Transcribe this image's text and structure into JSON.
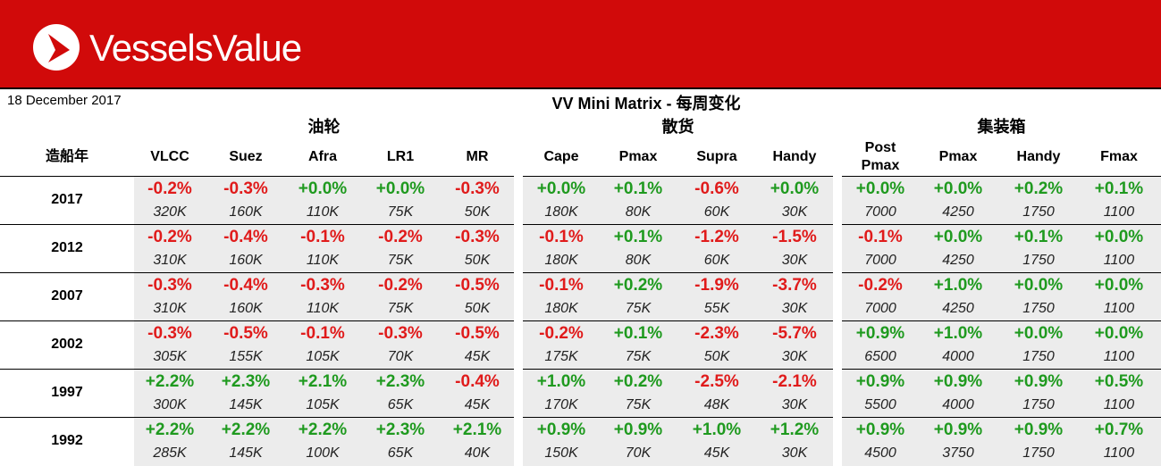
{
  "header": {
    "logo": "VesselsValue",
    "date": "18 December 2017",
    "title": "VV Mini Matrix - 每周变化"
  },
  "table": {
    "year_header": "造船年",
    "groups": [
      {
        "name": "油轮",
        "columns": [
          "VLCC",
          "Suez",
          "Afra",
          "LR1",
          "MR"
        ]
      },
      {
        "name": "散货",
        "columns": [
          "Cape",
          "Pmax",
          "Supra",
          "Handy"
        ]
      },
      {
        "name": "集装箱",
        "columns": [
          "Post Pmax",
          "Pmax",
          "Handy",
          "Fmax"
        ]
      }
    ],
    "rows": [
      {
        "year": "2017",
        "changes": [
          "-0.2%",
          "-0.3%",
          "+0.0%",
          "+0.0%",
          "-0.3%",
          "+0.0%",
          "+0.1%",
          "-0.6%",
          "+0.0%",
          "+0.0%",
          "+0.0%",
          "+0.2%",
          "+0.1%"
        ],
        "sizes": [
          "320K",
          "160K",
          "110K",
          "75K",
          "50K",
          "180K",
          "80K",
          "60K",
          "30K",
          "7000",
          "4250",
          "1750",
          "1100"
        ]
      },
      {
        "year": "2012",
        "changes": [
          "-0.2%",
          "-0.4%",
          "-0.1%",
          "-0.2%",
          "-0.3%",
          "-0.1%",
          "+0.1%",
          "-1.2%",
          "-1.5%",
          "-0.1%",
          "+0.0%",
          "+0.1%",
          "+0.0%"
        ],
        "sizes": [
          "310K",
          "160K",
          "110K",
          "75K",
          "50K",
          "180K",
          "80K",
          "60K",
          "30K",
          "7000",
          "4250",
          "1750",
          "1100"
        ]
      },
      {
        "year": "2007",
        "changes": [
          "-0.3%",
          "-0.4%",
          "-0.3%",
          "-0.2%",
          "-0.5%",
          "-0.1%",
          "+0.2%",
          "-1.9%",
          "-3.7%",
          "-0.2%",
          "+1.0%",
          "+0.0%",
          "+0.0%"
        ],
        "sizes": [
          "310K",
          "160K",
          "110K",
          "75K",
          "50K",
          "180K",
          "75K",
          "55K",
          "30K",
          "7000",
          "4250",
          "1750",
          "1100"
        ]
      },
      {
        "year": "2002",
        "changes": [
          "-0.3%",
          "-0.5%",
          "-0.1%",
          "-0.3%",
          "-0.5%",
          "-0.2%",
          "+0.1%",
          "-2.3%",
          "-5.7%",
          "+0.9%",
          "+1.0%",
          "+0.0%",
          "+0.0%"
        ],
        "sizes": [
          "305K",
          "155K",
          "105K",
          "70K",
          "45K",
          "175K",
          "75K",
          "50K",
          "30K",
          "6500",
          "4000",
          "1750",
          "1100"
        ]
      },
      {
        "year": "1997",
        "changes": [
          "+2.2%",
          "+2.3%",
          "+2.1%",
          "+2.3%",
          "-0.4%",
          "+1.0%",
          "+0.2%",
          "-2.5%",
          "-2.1%",
          "+0.9%",
          "+0.9%",
          "+0.9%",
          "+0.5%"
        ],
        "sizes": [
          "300K",
          "145K",
          "105K",
          "65K",
          "45K",
          "170K",
          "75K",
          "48K",
          "30K",
          "5500",
          "4000",
          "1750",
          "1100"
        ]
      },
      {
        "year": "1992",
        "changes": [
          "+2.2%",
          "+2.2%",
          "+2.2%",
          "+2.3%",
          "+2.1%",
          "+0.9%",
          "+0.9%",
          "+1.0%",
          "+1.2%",
          "+0.9%",
          "+0.9%",
          "+0.9%",
          "+0.7%"
        ],
        "sizes": [
          "285K",
          "145K",
          "100K",
          "65K",
          "40K",
          "150K",
          "70K",
          "45K",
          "30K",
          "4500",
          "3750",
          "1750",
          "1100"
        ]
      }
    ]
  }
}
